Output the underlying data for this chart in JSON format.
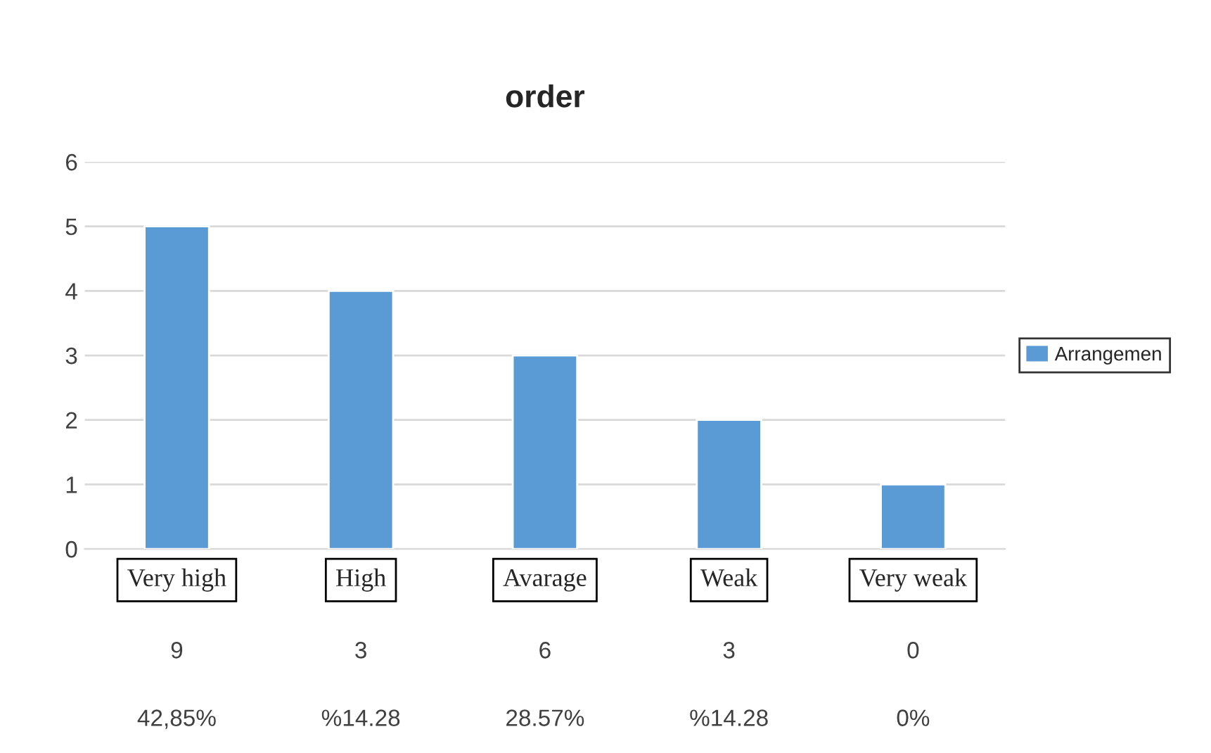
{
  "chart_data": {
    "type": "bar",
    "title": "order",
    "categories": [
      "Very high",
      "High",
      "Avarage",
      "Weak",
      "Very weak"
    ],
    "series": [
      {
        "name": "Arrangemen",
        "color": "#5b9bd5",
        "values": [
          5,
          4,
          3,
          2,
          1
        ]
      }
    ],
    "ylim": [
      0,
      6
    ],
    "yticks": [
      0,
      1,
      2,
      3,
      4,
      5,
      6
    ],
    "grid": "y",
    "legend": "right",
    "annotations": [
      "9",
      "3",
      "6",
      "3",
      "0",
      "42,85%",
      "%14.28",
      "28.57%",
      "%14.28",
      "0%"
    ]
  }
}
